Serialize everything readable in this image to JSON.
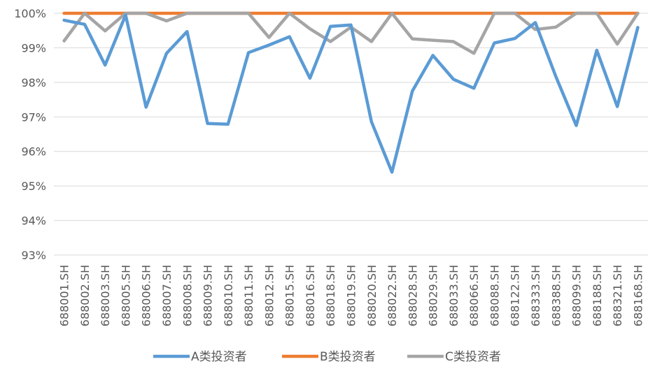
{
  "chart_data": {
    "type": "line",
    "title": "",
    "xlabel": "",
    "ylabel": "",
    "ylim": [
      93,
      100
    ],
    "y_ticks": [
      "93%",
      "94%",
      "95%",
      "96%",
      "97%",
      "98%",
      "99%",
      "100%"
    ],
    "y_tick_values": [
      93,
      94,
      95,
      96,
      97,
      98,
      99,
      100
    ],
    "grid": true,
    "legend_position": "bottom",
    "categories": [
      "688001.SH",
      "688002.SH",
      "688003.SH",
      "688005.SH",
      "688006.SH",
      "688007.SH",
      "688008.SH",
      "688009.SH",
      "688010.SH",
      "688011.SH",
      "688012.SH",
      "688015.SH",
      "688016.SH",
      "688018.SH",
      "688019.SH",
      "688020.SH",
      "688022.SH",
      "688028.SH",
      "688029.SH",
      "688033.SH",
      "688066.SH",
      "688088.SH",
      "688122.SH",
      "688333.SH",
      "688388.SH",
      "688099.SH",
      "688188.SH",
      "688321.SH",
      "688168.SH"
    ],
    "series": [
      {
        "name": "A类投资者",
        "color": "#5B9BD5",
        "values": [
          99.8,
          99.68,
          98.5,
          99.95,
          97.28,
          98.84,
          99.47,
          96.81,
          96.79,
          98.86,
          99.08,
          99.32,
          98.12,
          99.62,
          99.66,
          96.86,
          95.4,
          97.75,
          98.78,
          98.09,
          97.83,
          99.14,
          99.27,
          99.73,
          98.17,
          96.75,
          98.93,
          97.3,
          99.59
        ]
      },
      {
        "name": "B类投资者",
        "color": "#ED7D31",
        "values": [
          100,
          100,
          100,
          100,
          100,
          100,
          100,
          100,
          100,
          100,
          100,
          100,
          100,
          100,
          100,
          100,
          100,
          100,
          100,
          100,
          100,
          100,
          100,
          100,
          100,
          100,
          100,
          100,
          100
        ]
      },
      {
        "name": "C类投资者",
        "color": "#A5A5A5",
        "values": [
          99.2,
          100,
          99.49,
          100,
          100,
          99.78,
          100,
          100,
          100,
          100,
          99.3,
          100,
          99.55,
          99.18,
          99.6,
          99.18,
          100,
          99.26,
          99.22,
          99.18,
          98.84,
          100,
          100,
          99.53,
          99.6,
          100,
          100,
          99.11,
          100
        ]
      }
    ]
  }
}
